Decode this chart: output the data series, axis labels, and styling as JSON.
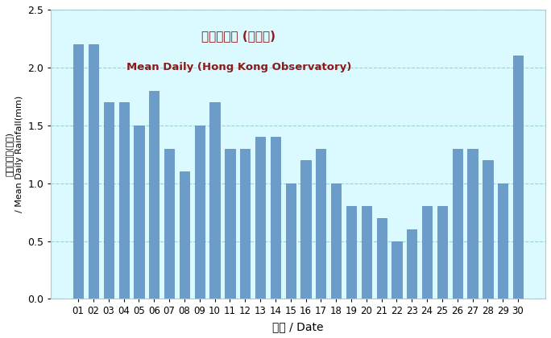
{
  "days": [
    "01",
    "02",
    "03",
    "04",
    "05",
    "06",
    "07",
    "08",
    "09",
    "10",
    "11",
    "12",
    "13",
    "14",
    "15",
    "16",
    "17",
    "18",
    "19",
    "20",
    "21",
    "22",
    "23",
    "24",
    "25",
    "26",
    "27",
    "28",
    "29",
    "30"
  ],
  "values": [
    2.2,
    2.2,
    1.7,
    1.7,
    1.5,
    1.8,
    1.3,
    1.1,
    1.5,
    1.7,
    1.3,
    1.3,
    1.4,
    1.4,
    1.0,
    1.2,
    1.3,
    1.0,
    0.8,
    0.8,
    0.7,
    0.5,
    0.6,
    0.8,
    0.8,
    1.3,
    1.3,
    1.2,
    1.0,
    2.1
  ],
  "bar_color": "#6B9DC8",
  "background_color": "#DAFAFF",
  "fig_background": "#FFFFFF",
  "title_chinese": "平均日雨量 (天文台)",
  "title_english": "Mean Daily (Hong Kong Observatory)",
  "xlabel": "日期 / Date",
  "ylabel_chinese": "平均日雨量(毫米)",
  "ylabel_english": "/ Mean Daily Rainfall(mm)",
  "ylim": [
    0,
    2.5
  ],
  "yticks": [
    0,
    0.5,
    1.0,
    1.5,
    2.0,
    2.5
  ],
  "title_color": "#8B1A1A",
  "grid_color": "#99CCCC",
  "grid_linestyle": "--",
  "bar_edge_color": "#5588BB"
}
